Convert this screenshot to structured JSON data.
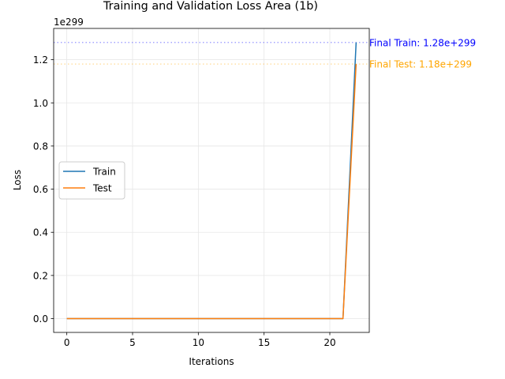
{
  "chart_data": {
    "type": "line",
    "title": "Training and Validation Loss Area (1b)",
    "xlabel": "Iterations",
    "ylabel": "Loss",
    "y_scale_label": "1e299",
    "xlim": [
      -1,
      23
    ],
    "ylim": [
      -0.064,
      1.345
    ],
    "x_ticks": [
      0,
      5,
      10,
      15,
      20
    ],
    "x_tick_labels": [
      "0",
      "5",
      "10",
      "15",
      "20"
    ],
    "y_ticks": [
      0.0,
      0.2,
      0.4,
      0.6,
      0.8,
      1.0,
      1.2
    ],
    "y_tick_labels": [
      "0.0",
      "0.2",
      "0.4",
      "0.6",
      "0.8",
      "1.0",
      "1.2"
    ],
    "grid": true,
    "legend_position": "center-left",
    "x": [
      0,
      1,
      2,
      3,
      4,
      5,
      6,
      7,
      8,
      9,
      10,
      11,
      12,
      13,
      14,
      15,
      16,
      17,
      18,
      19,
      20,
      21,
      22
    ],
    "series": [
      {
        "name": "Train",
        "color": "#1f77b4",
        "values": [
          0,
          0,
          0,
          0,
          0,
          0,
          0,
          0,
          0,
          0,
          0,
          0,
          0,
          0,
          0,
          0,
          0,
          0,
          0,
          0,
          0,
          0,
          1.28
        ]
      },
      {
        "name": "Test",
        "color": "#ff7f0e",
        "values": [
          0,
          0,
          0,
          0,
          0,
          0,
          0,
          0,
          0,
          0,
          0,
          0,
          0,
          0,
          0,
          0,
          0,
          0,
          0,
          0,
          0,
          0,
          1.18
        ]
      }
    ],
    "reference_lines": [
      {
        "value": 1.28,
        "color": "#0000ff",
        "label": "Final Train: 1.28e+299"
      },
      {
        "value": 1.18,
        "color": "#ffa500",
        "label": "Final Test: 1.18e+299"
      }
    ]
  }
}
